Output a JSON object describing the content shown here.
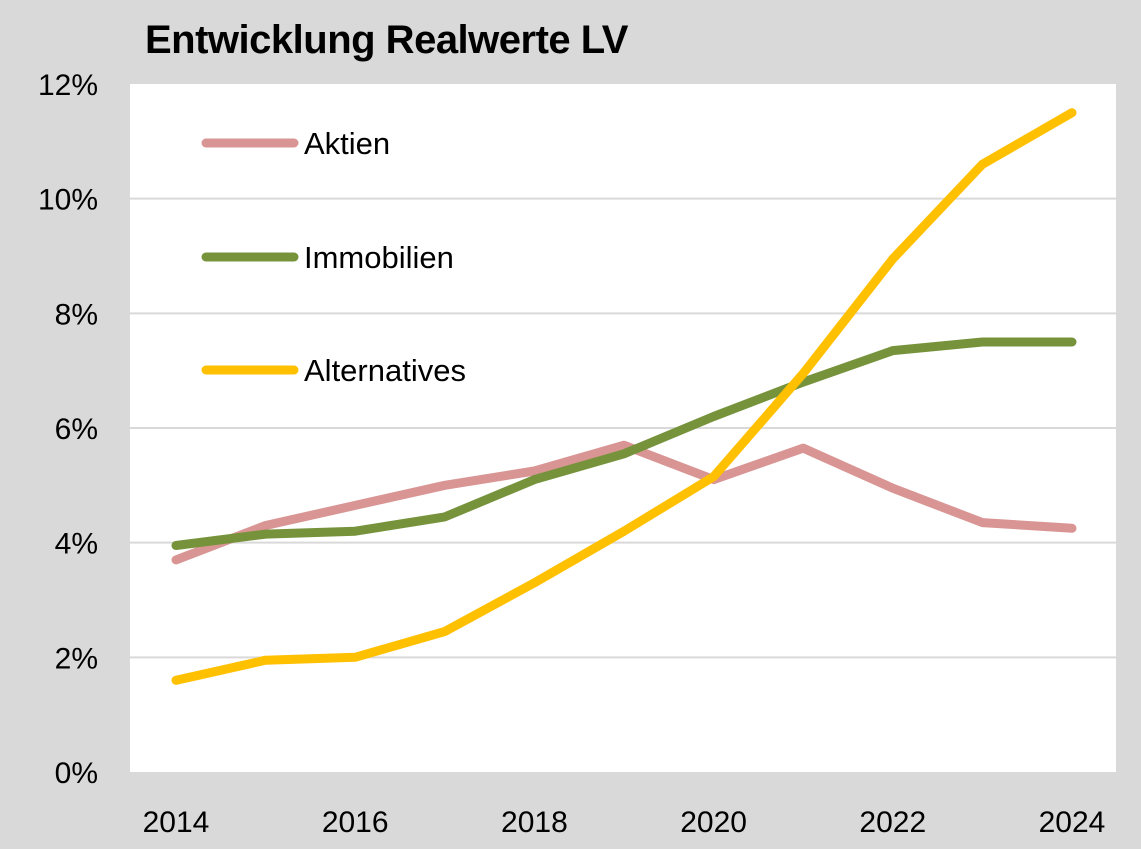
{
  "chart_data": {
    "type": "line",
    "title": "Entwicklung Realwerte LV",
    "xlabel": "",
    "ylabel": "",
    "x": [
      2014,
      2015,
      2016,
      2017,
      2018,
      2019,
      2020,
      2021,
      2022,
      2023,
      2024
    ],
    "x_ticks": [
      "2014",
      "2016",
      "2018",
      "2020",
      "2022",
      "2024"
    ],
    "x_tick_values": [
      2014,
      2016,
      2018,
      2020,
      2022,
      2024
    ],
    "y_ticks": [
      "0%",
      "2%",
      "4%",
      "6%",
      "8%",
      "10%",
      "12%"
    ],
    "y_tick_values": [
      0,
      2,
      4,
      6,
      8,
      10,
      12
    ],
    "xlim": [
      2014,
      2024
    ],
    "ylim": [
      0,
      12
    ],
    "grid": "horizontal",
    "legend_position": "top-left",
    "series": [
      {
        "name": "Aktien",
        "color": "#d99594",
        "values": [
          3.7,
          4.3,
          4.65,
          5.0,
          5.25,
          5.7,
          5.1,
          5.65,
          4.95,
          4.35,
          4.25
        ]
      },
      {
        "name": "Immobilien",
        "color": "#76933c",
        "values": [
          3.95,
          4.15,
          4.2,
          4.45,
          5.1,
          5.55,
          6.2,
          6.8,
          7.35,
          7.5,
          7.5
        ]
      },
      {
        "name": "Alternatives",
        "color": "#ffc000",
        "values": [
          1.6,
          1.95,
          2.0,
          2.45,
          3.3,
          4.2,
          5.15,
          6.95,
          8.95,
          10.6,
          11.5
        ]
      }
    ]
  }
}
